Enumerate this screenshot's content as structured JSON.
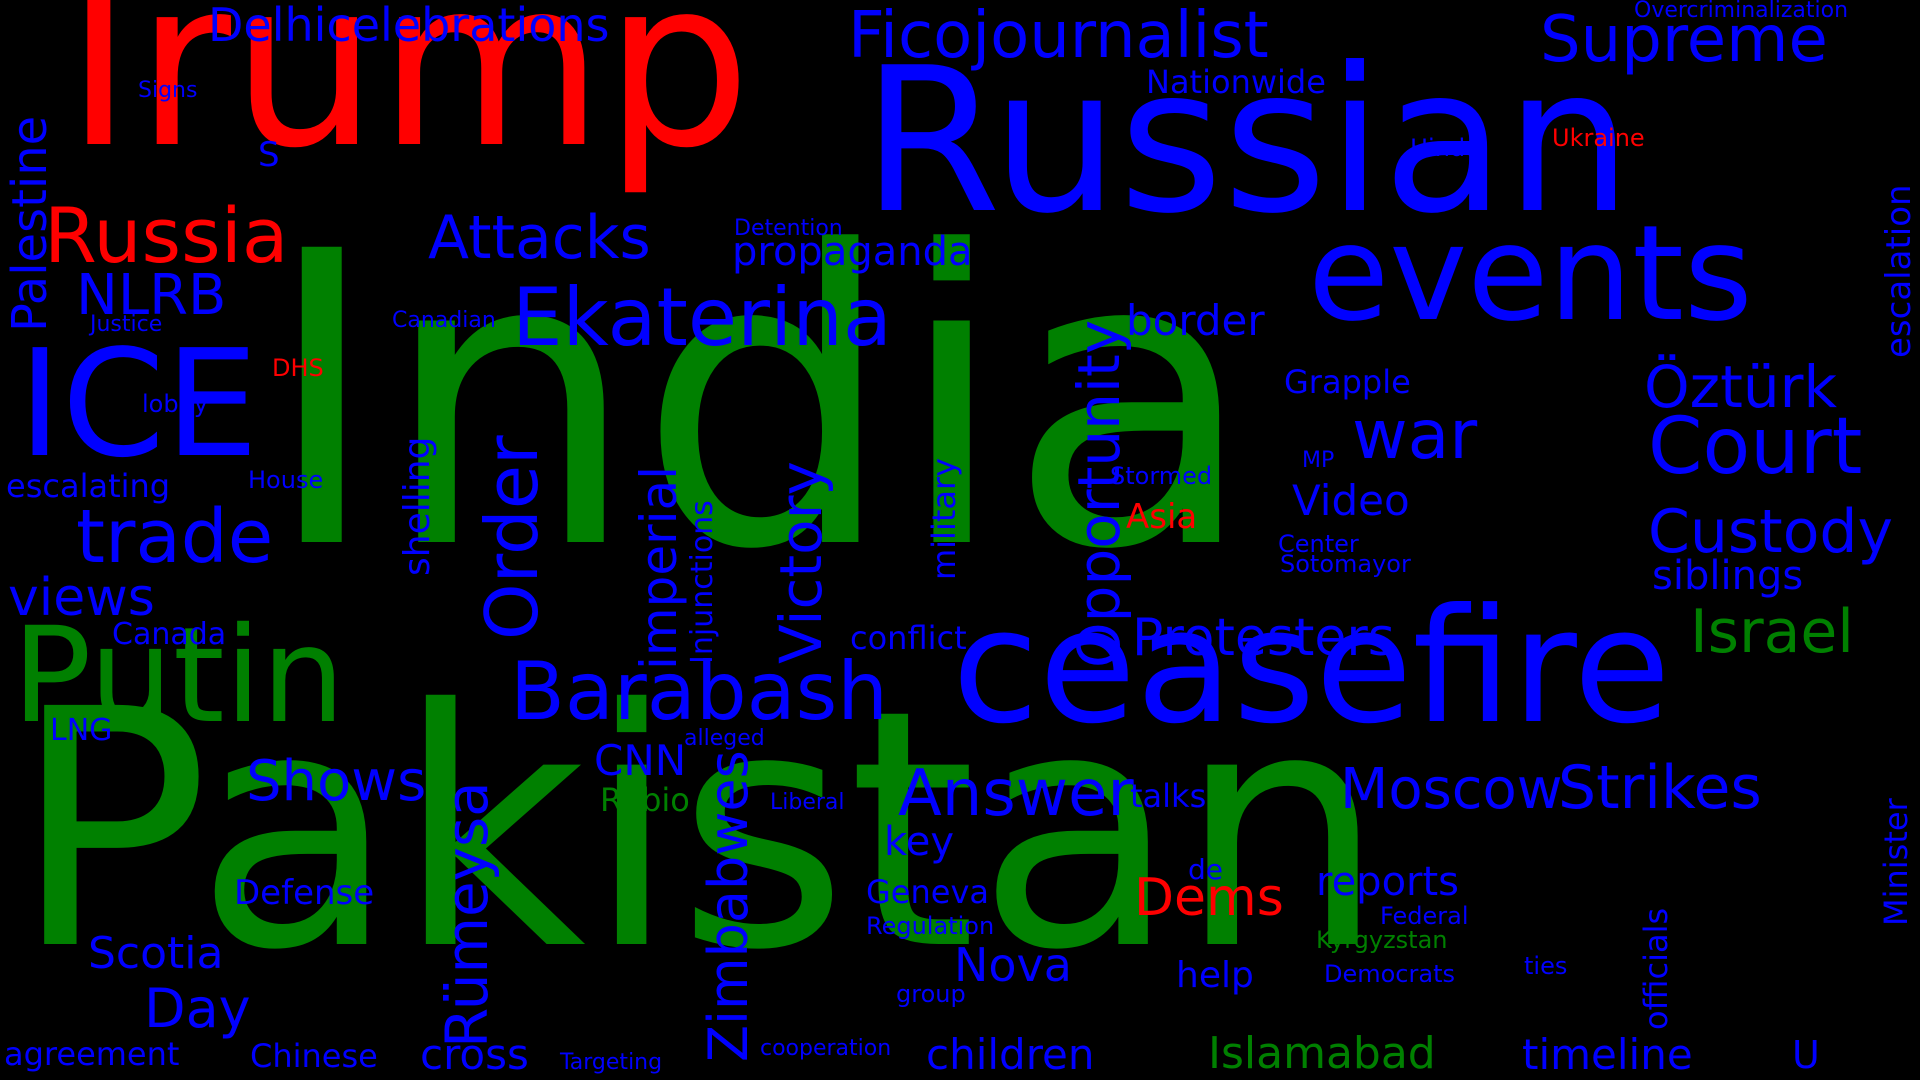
{
  "word_cloud": {
    "background": "#000000",
    "colors": {
      "red": "#ff0000",
      "blue": "#0000ff",
      "green": "#008000"
    },
    "words": [
      {
        "text": "India",
        "color": "green"
      },
      {
        "text": "Pakistan",
        "color": "green"
      },
      {
        "text": "Trump",
        "color": "red"
      },
      {
        "text": "Russian",
        "color": "blue"
      },
      {
        "text": "ceasefire",
        "color": "blue"
      },
      {
        "text": "events",
        "color": "blue"
      },
      {
        "text": "Putin",
        "color": "green"
      },
      {
        "text": "ICE",
        "color": "blue"
      },
      {
        "text": "Russia",
        "color": "red"
      },
      {
        "text": "Ficojournalist",
        "color": "blue"
      },
      {
        "text": "Supreme",
        "color": "blue"
      },
      {
        "text": "Court",
        "color": "blue"
      },
      {
        "text": "Ekaterina",
        "color": "blue"
      },
      {
        "text": "Barabash",
        "color": "blue"
      },
      {
        "text": "trade",
        "color": "blue"
      },
      {
        "text": "Attacks",
        "color": "blue"
      },
      {
        "text": "Delhicelebrations",
        "color": "blue"
      },
      {
        "text": "war",
        "color": "blue"
      },
      {
        "text": "Öztürk",
        "color": "blue"
      },
      {
        "text": "Custody",
        "color": "blue"
      },
      {
        "text": "Israel",
        "color": "green"
      },
      {
        "text": "Protesters",
        "color": "blue"
      },
      {
        "text": "Answer",
        "color": "blue"
      },
      {
        "text": "Moscow",
        "color": "blue"
      },
      {
        "text": "Strikes",
        "color": "blue"
      },
      {
        "text": "Shows",
        "color": "blue"
      },
      {
        "text": "NLRB",
        "color": "blue"
      },
      {
        "text": "views",
        "color": "blue"
      },
      {
        "text": "Order",
        "color": "blue"
      },
      {
        "text": "Victory",
        "color": "blue"
      },
      {
        "text": "Opportunity",
        "color": "blue"
      },
      {
        "text": "imperial",
        "color": "blue"
      },
      {
        "text": "Rümeysa",
        "color": "blue"
      },
      {
        "text": "Zimbabwes",
        "color": "blue"
      },
      {
        "text": "Palestine",
        "color": "blue"
      },
      {
        "text": "Dems",
        "color": "red"
      },
      {
        "text": "propaganda",
        "color": "blue"
      },
      {
        "text": "border",
        "color": "blue"
      },
      {
        "text": "Video",
        "color": "blue"
      },
      {
        "text": "siblings",
        "color": "blue"
      },
      {
        "text": "Nationwide",
        "color": "blue"
      },
      {
        "text": "Overcriminalization",
        "color": "blue"
      },
      {
        "text": "Signs",
        "color": "blue"
      },
      {
        "text": "S",
        "color": "blue"
      },
      {
        "text": "Hindu",
        "color": "blue"
      },
      {
        "text": "Ukraine",
        "color": "red"
      },
      {
        "text": "escalation",
        "color": "blue"
      },
      {
        "text": "Detention",
        "color": "blue"
      },
      {
        "text": "Justice",
        "color": "blue"
      },
      {
        "text": "Canadian",
        "color": "blue"
      },
      {
        "text": "DHS",
        "color": "red"
      },
      {
        "text": "lobby",
        "color": "blue"
      },
      {
        "text": "Grapple",
        "color": "blue"
      },
      {
        "text": "MP",
        "color": "blue"
      },
      {
        "text": "Stormed",
        "color": "blue"
      },
      {
        "text": "House",
        "color": "blue"
      },
      {
        "text": "escalating",
        "color": "blue"
      },
      {
        "text": "Asia",
        "color": "red"
      },
      {
        "text": "Center",
        "color": "blue"
      },
      {
        "text": "Sotomayor",
        "color": "blue"
      },
      {
        "text": "shelling",
        "color": "blue"
      },
      {
        "text": "military",
        "color": "blue"
      },
      {
        "text": "Injunctions",
        "color": "blue"
      },
      {
        "text": "Canada",
        "color": "blue"
      },
      {
        "text": "conflict",
        "color": "blue"
      },
      {
        "text": "LNG",
        "color": "blue"
      },
      {
        "text": "CNN",
        "color": "blue"
      },
      {
        "text": "alleged",
        "color": "blue"
      },
      {
        "text": "Rubio",
        "color": "green"
      },
      {
        "text": "Liberal",
        "color": "blue"
      },
      {
        "text": "talks",
        "color": "blue"
      },
      {
        "text": "Minister",
        "color": "blue"
      },
      {
        "text": "officials",
        "color": "blue"
      },
      {
        "text": "key",
        "color": "blue"
      },
      {
        "text": "reports",
        "color": "blue"
      },
      {
        "text": "de",
        "color": "blue"
      },
      {
        "text": "Defense",
        "color": "blue"
      },
      {
        "text": "Geneva",
        "color": "blue"
      },
      {
        "text": "Regulation",
        "color": "blue"
      },
      {
        "text": "Federal",
        "color": "blue"
      },
      {
        "text": "Kyrgyzstan",
        "color": "green"
      },
      {
        "text": "Scotia",
        "color": "blue"
      },
      {
        "text": "Nova",
        "color": "blue"
      },
      {
        "text": "Day",
        "color": "blue"
      },
      {
        "text": "help",
        "color": "blue"
      },
      {
        "text": "Democrats",
        "color": "blue"
      },
      {
        "text": "ties",
        "color": "blue"
      },
      {
        "text": "group",
        "color": "blue"
      },
      {
        "text": "agreement",
        "color": "blue"
      },
      {
        "text": "Chinese",
        "color": "blue"
      },
      {
        "text": "cross",
        "color": "blue"
      },
      {
        "text": "Targeting",
        "color": "blue"
      },
      {
        "text": "cooperation",
        "color": "blue"
      },
      {
        "text": "children",
        "color": "blue"
      },
      {
        "text": "Islamabad",
        "color": "green"
      },
      {
        "text": "timeline",
        "color": "blue"
      },
      {
        "text": "U",
        "color": "blue"
      }
    ]
  }
}
